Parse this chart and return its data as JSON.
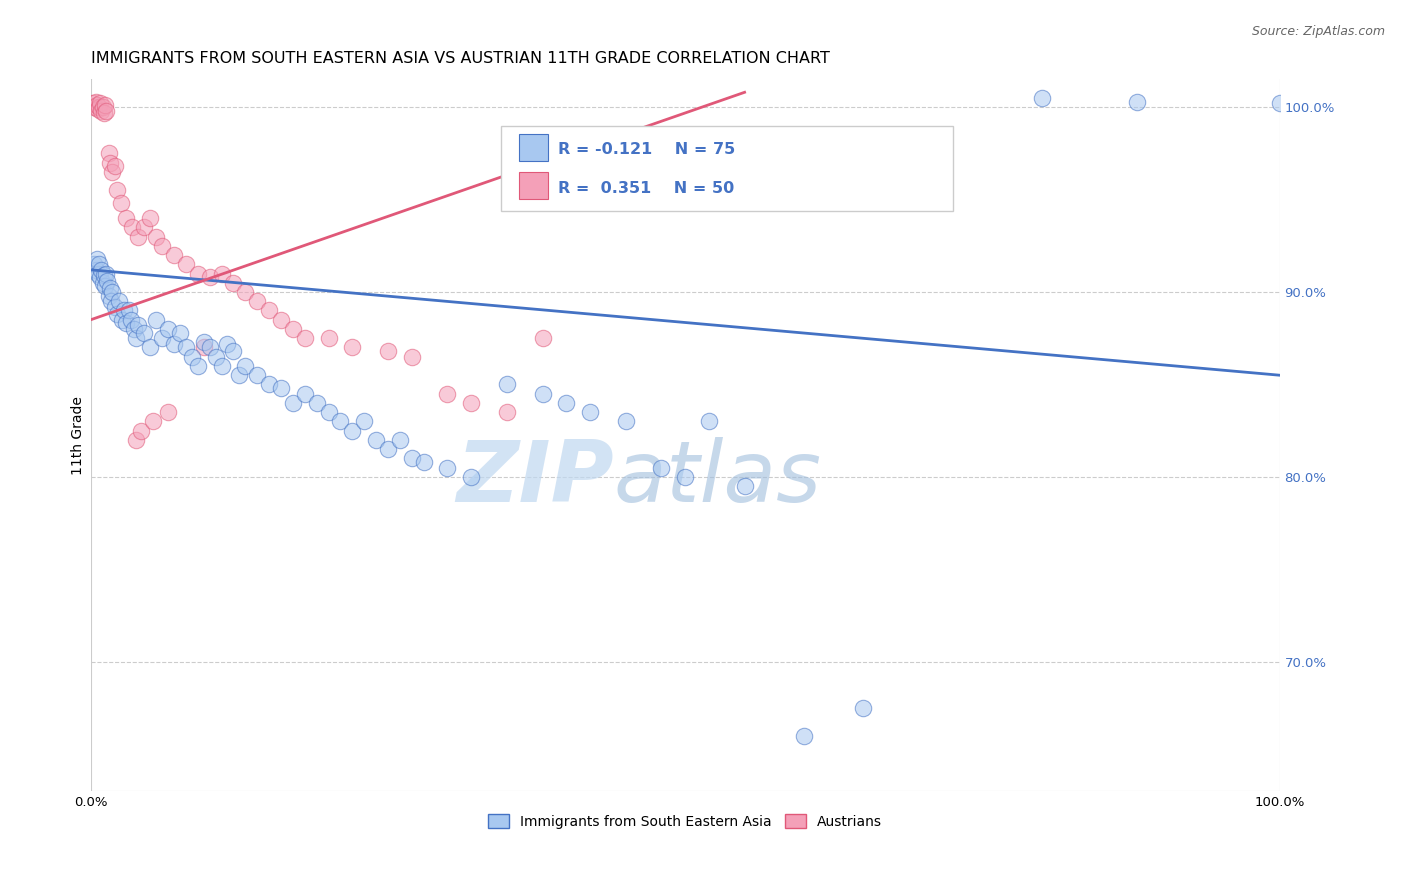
{
  "title": "IMMIGRANTS FROM SOUTH EASTERN ASIA VS AUSTRIAN 11TH GRADE CORRELATION CHART",
  "source": "Source: ZipAtlas.com",
  "ylabel": "11th Grade",
  "right_yticks": [
    100.0,
    90.0,
    80.0,
    70.0
  ],
  "xmin": 0.0,
  "xmax": 100.0,
  "ymin": 63.0,
  "ymax": 101.5,
  "legend_entries": [
    "Immigrants from South Eastern Asia",
    "Austrians"
  ],
  "blue_R": -0.121,
  "blue_N": 75,
  "pink_R": 0.351,
  "pink_N": 50,
  "blue_color": "#A8C8F0",
  "pink_color": "#F4A0B8",
  "blue_line_color": "#4472C4",
  "pink_line_color": "#E05878",
  "blue_scatter": [
    [
      0.3,
      91.5
    ],
    [
      0.4,
      91.2
    ],
    [
      0.5,
      91.8
    ],
    [
      0.6,
      91.0
    ],
    [
      0.7,
      91.5
    ],
    [
      0.8,
      90.8
    ],
    [
      0.9,
      91.2
    ],
    [
      1.0,
      90.5
    ],
    [
      1.1,
      90.9
    ],
    [
      1.2,
      90.3
    ],
    [
      1.3,
      91.0
    ],
    [
      1.4,
      90.6
    ],
    [
      1.5,
      89.8
    ],
    [
      1.6,
      90.2
    ],
    [
      1.7,
      89.5
    ],
    [
      1.8,
      90.0
    ],
    [
      2.0,
      89.2
    ],
    [
      2.2,
      88.8
    ],
    [
      2.4,
      89.5
    ],
    [
      2.6,
      88.5
    ],
    [
      2.8,
      89.0
    ],
    [
      3.0,
      88.3
    ],
    [
      3.2,
      89.0
    ],
    [
      3.4,
      88.5
    ],
    [
      3.6,
      88.0
    ],
    [
      3.8,
      87.5
    ],
    [
      4.0,
      88.2
    ],
    [
      4.5,
      87.8
    ],
    [
      5.0,
      87.0
    ],
    [
      5.5,
      88.5
    ],
    [
      6.0,
      87.5
    ],
    [
      6.5,
      88.0
    ],
    [
      7.0,
      87.2
    ],
    [
      7.5,
      87.8
    ],
    [
      8.0,
      87.0
    ],
    [
      8.5,
      86.5
    ],
    [
      9.0,
      86.0
    ],
    [
      9.5,
      87.3
    ],
    [
      10.0,
      87.0
    ],
    [
      10.5,
      86.5
    ],
    [
      11.0,
      86.0
    ],
    [
      11.5,
      87.2
    ],
    [
      12.0,
      86.8
    ],
    [
      12.5,
      85.5
    ],
    [
      13.0,
      86.0
    ],
    [
      14.0,
      85.5
    ],
    [
      15.0,
      85.0
    ],
    [
      16.0,
      84.8
    ],
    [
      17.0,
      84.0
    ],
    [
      18.0,
      84.5
    ],
    [
      19.0,
      84.0
    ],
    [
      20.0,
      83.5
    ],
    [
      21.0,
      83.0
    ],
    [
      22.0,
      82.5
    ],
    [
      23.0,
      83.0
    ],
    [
      24.0,
      82.0
    ],
    [
      25.0,
      81.5
    ],
    [
      26.0,
      82.0
    ],
    [
      27.0,
      81.0
    ],
    [
      28.0,
      80.8
    ],
    [
      30.0,
      80.5
    ],
    [
      32.0,
      80.0
    ],
    [
      35.0,
      85.0
    ],
    [
      38.0,
      84.5
    ],
    [
      40.0,
      84.0
    ],
    [
      42.0,
      83.5
    ],
    [
      45.0,
      83.0
    ],
    [
      48.0,
      80.5
    ],
    [
      50.0,
      80.0
    ],
    [
      52.0,
      83.0
    ],
    [
      55.0,
      79.5
    ],
    [
      60.0,
      66.0
    ],
    [
      65.0,
      67.5
    ],
    [
      80.0,
      100.5
    ],
    [
      88.0,
      100.3
    ],
    [
      100.0,
      100.2
    ]
  ],
  "pink_scatter": [
    [
      0.2,
      100.2
    ],
    [
      0.3,
      100.0
    ],
    [
      0.4,
      100.3
    ],
    [
      0.5,
      100.1
    ],
    [
      0.6,
      99.9
    ],
    [
      0.7,
      100.0
    ],
    [
      0.8,
      100.2
    ],
    [
      0.9,
      99.8
    ],
    [
      1.0,
      100.0
    ],
    [
      1.1,
      99.7
    ],
    [
      1.2,
      100.1
    ],
    [
      1.3,
      99.8
    ],
    [
      1.5,
      97.5
    ],
    [
      1.6,
      97.0
    ],
    [
      1.8,
      96.5
    ],
    [
      2.0,
      96.8
    ],
    [
      2.2,
      95.5
    ],
    [
      2.5,
      94.8
    ],
    [
      3.0,
      94.0
    ],
    [
      3.5,
      93.5
    ],
    [
      4.0,
      93.0
    ],
    [
      4.5,
      93.5
    ],
    [
      5.0,
      94.0
    ],
    [
      5.5,
      93.0
    ],
    [
      6.0,
      92.5
    ],
    [
      7.0,
      92.0
    ],
    [
      8.0,
      91.5
    ],
    [
      9.0,
      91.0
    ],
    [
      10.0,
      90.8
    ],
    [
      11.0,
      91.0
    ],
    [
      12.0,
      90.5
    ],
    [
      13.0,
      90.0
    ],
    [
      14.0,
      89.5
    ],
    [
      15.0,
      89.0
    ],
    [
      16.0,
      88.5
    ],
    [
      17.0,
      88.0
    ],
    [
      18.0,
      87.5
    ],
    [
      20.0,
      87.5
    ],
    [
      22.0,
      87.0
    ],
    [
      25.0,
      86.8
    ],
    [
      27.0,
      86.5
    ],
    [
      30.0,
      84.5
    ],
    [
      32.0,
      84.0
    ],
    [
      35.0,
      83.5
    ],
    [
      38.0,
      87.5
    ],
    [
      3.8,
      82.0
    ],
    [
      4.2,
      82.5
    ],
    [
      5.2,
      83.0
    ],
    [
      6.5,
      83.5
    ],
    [
      9.5,
      87.0
    ]
  ],
  "blue_trend": [
    0.0,
    91.2,
    100.0,
    85.5
  ],
  "pink_trend": [
    0.0,
    88.5,
    55.0,
    100.8
  ],
  "watermark_zip": "ZIP",
  "watermark_atlas": "atlas",
  "grid_color": "#cccccc",
  "title_fontsize": 11.5,
  "label_fontsize": 10,
  "tick_fontsize": 9.5
}
